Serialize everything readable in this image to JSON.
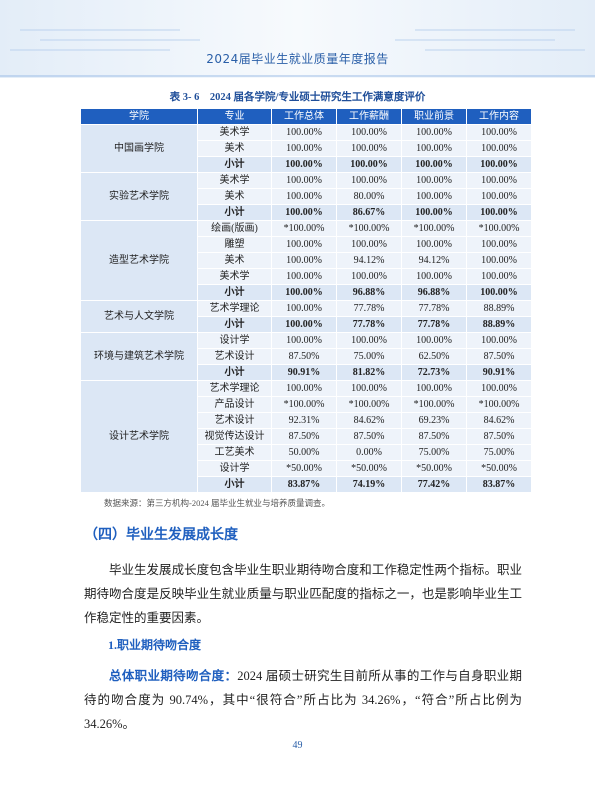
{
  "header": {
    "title": "2024届毕业生就业质量年度报告"
  },
  "table": {
    "caption": "表 3- 6　2024 届各学院/专业硕士研究生工作满意度评价",
    "columns": [
      "学院",
      "专业",
      "工作总体",
      "工作薪酬",
      "职业前景",
      "工作内容"
    ],
    "groups": [
      {
        "college": "中国画学院",
        "rows": [
          [
            "美术学",
            "100.00%",
            "100.00%",
            "100.00%",
            "100.00%"
          ],
          [
            "美术",
            "100.00%",
            "100.00%",
            "100.00%",
            "100.00%"
          ],
          [
            "小计",
            "100.00%",
            "100.00%",
            "100.00%",
            "100.00%"
          ]
        ]
      },
      {
        "college": "实验艺术学院",
        "rows": [
          [
            "美术学",
            "100.00%",
            "100.00%",
            "100.00%",
            "100.00%"
          ],
          [
            "美术",
            "100.00%",
            "80.00%",
            "100.00%",
            "100.00%"
          ],
          [
            "小计",
            "100.00%",
            "86.67%",
            "100.00%",
            "100.00%"
          ]
        ]
      },
      {
        "college": "造型艺术学院",
        "rows": [
          [
            "绘画(版画)",
            "*100.00%",
            "*100.00%",
            "*100.00%",
            "*100.00%"
          ],
          [
            "雕塑",
            "100.00%",
            "100.00%",
            "100.00%",
            "100.00%"
          ],
          [
            "美术",
            "100.00%",
            "94.12%",
            "94.12%",
            "100.00%"
          ],
          [
            "美术学",
            "100.00%",
            "100.00%",
            "100.00%",
            "100.00%"
          ],
          [
            "小计",
            "100.00%",
            "96.88%",
            "96.88%",
            "100.00%"
          ]
        ]
      },
      {
        "college": "艺术与人文学院",
        "rows": [
          [
            "艺术学理论",
            "100.00%",
            "77.78%",
            "77.78%",
            "88.89%"
          ],
          [
            "小计",
            "100.00%",
            "77.78%",
            "77.78%",
            "88.89%"
          ]
        ]
      },
      {
        "college": "环境与建筑艺术学院",
        "rows": [
          [
            "设计学",
            "100.00%",
            "100.00%",
            "100.00%",
            "100.00%"
          ],
          [
            "艺术设计",
            "87.50%",
            "75.00%",
            "62.50%",
            "87.50%"
          ],
          [
            "小计",
            "90.91%",
            "81.82%",
            "72.73%",
            "90.91%"
          ]
        ]
      },
      {
        "college": "设计艺术学院",
        "rows": [
          [
            "艺术学理论",
            "100.00%",
            "100.00%",
            "100.00%",
            "100.00%"
          ],
          [
            "产品设计",
            "*100.00%",
            "*100.00%",
            "*100.00%",
            "*100.00%"
          ],
          [
            "艺术设计",
            "92.31%",
            "84.62%",
            "69.23%",
            "84.62%"
          ],
          [
            "视觉传达设计",
            "87.50%",
            "87.50%",
            "87.50%",
            "87.50%"
          ],
          [
            "工艺美术",
            "50.00%",
            "0.00%",
            "75.00%",
            "75.00%"
          ],
          [
            "设计学",
            "*50.00%",
            "*50.00%",
            "*50.00%",
            "*50.00%"
          ],
          [
            "小计",
            "83.87%",
            "74.19%",
            "77.42%",
            "83.87%"
          ]
        ]
      }
    ],
    "source": "数据来源：第三方机构-2024 届毕业生就业与培养质量调查。"
  },
  "section": {
    "title": "（四）毕业生发展成长度",
    "paragraph": "毕业生发展成长度包含毕业生职业期待吻合度和工作稳定性两个指标。职业期待吻合度是反映毕业生就业质量与职业匹配度的指标之一，也是影响毕业生工作稳定性的重要因素。",
    "subsection": {
      "title": "1.职业期待吻合度",
      "lead": "总体职业期待吻合度：",
      "text": "2024 届硕士研究生目前所从事的工作与自身职业期待的吻合度为 90.74%，其中“很符合”所占比为 34.26%，“符合”所占比例为 34.26%。"
    }
  },
  "footer": {
    "page_number": "49"
  }
}
